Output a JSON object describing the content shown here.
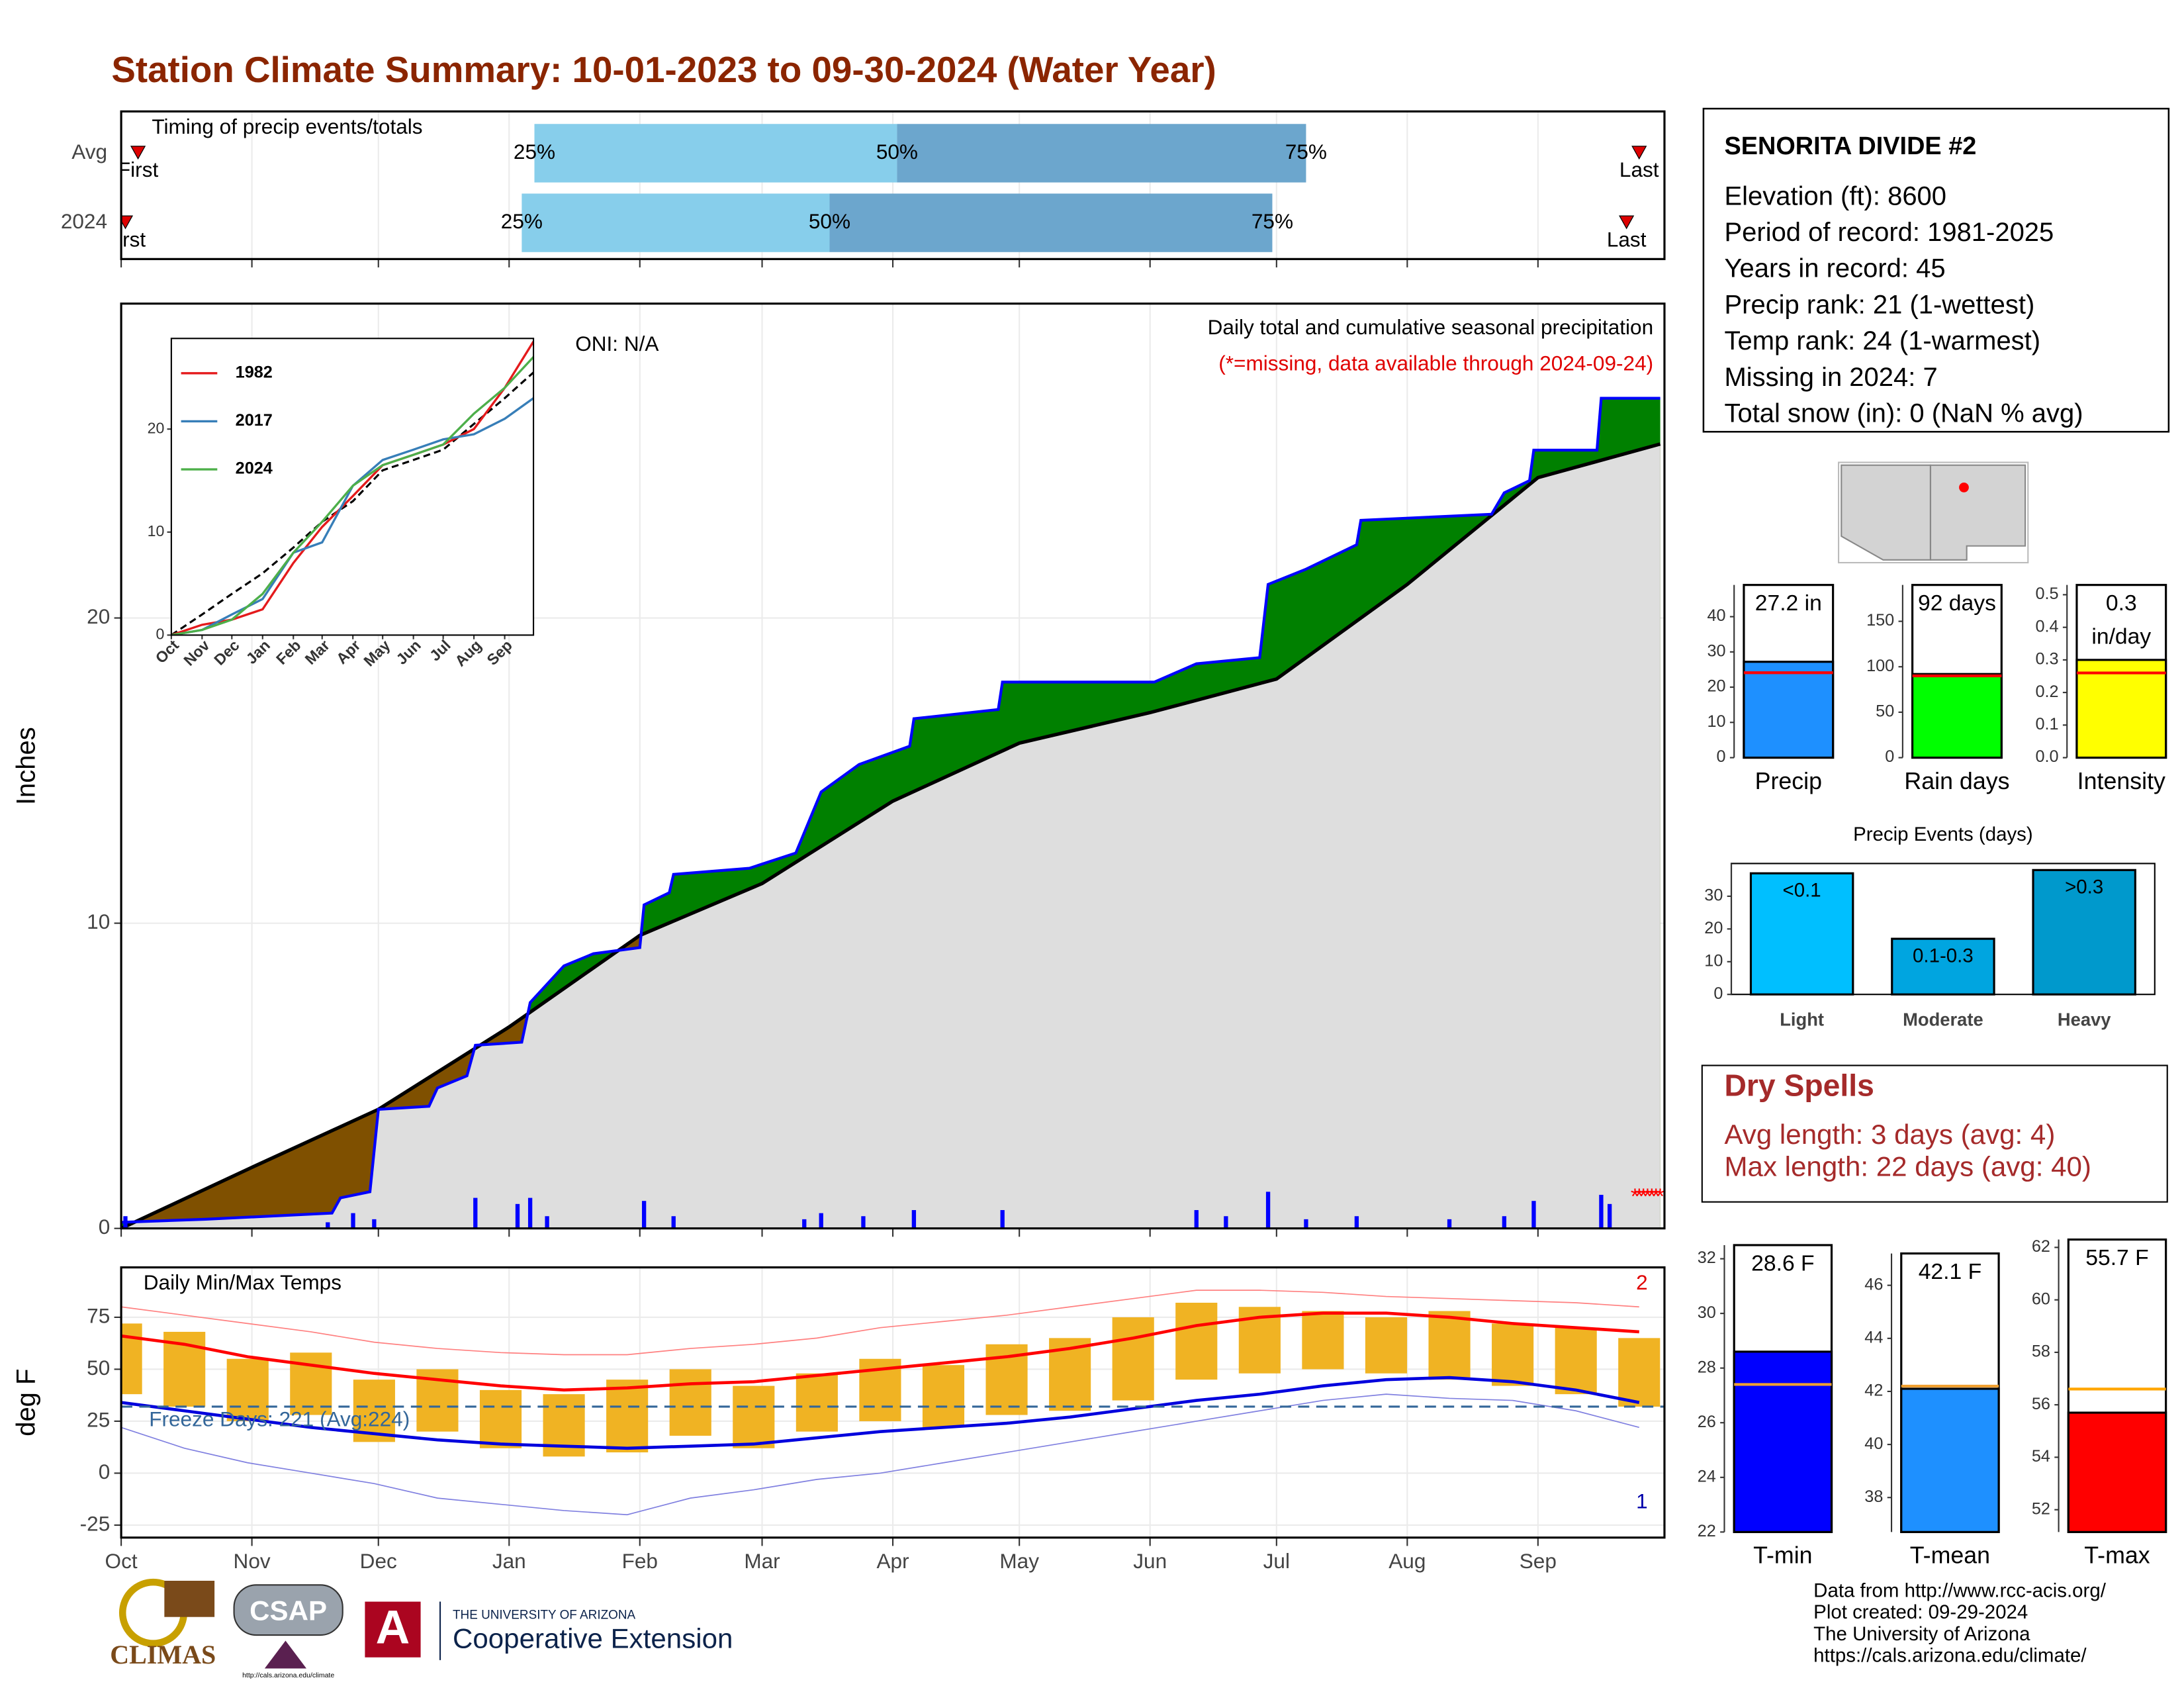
{
  "title": "Station Climate Summary: 10-01-2023 to 09-30-2024 (Water Year)",
  "station": {
    "name": "SENORITA DIVIDE #2",
    "lines": [
      "Elevation (ft): 8600",
      "Period of record: 1981-2025",
      "Years in record: 45",
      "Precip rank: 21 (1-wettest)",
      "Temp rank: 24 (1-warmest)",
      "Missing in 2024: 7",
      "Total snow (in): 0 (NaN % avg)"
    ]
  },
  "dry_spells": {
    "title": "Dry Spells",
    "lines": [
      "Avg length: 3 days (avg: 4)",
      "Max length: 22 days (avg: 40)"
    ]
  },
  "footer": [
    "Data from http://www.rcc-acis.org/",
    "Plot created: 09-29-2024",
    "The University of Arizona",
    "https://cals.arizona.edu/climate/"
  ],
  "logos": [
    "CLIMAS",
    "CSAP",
    "http://cals.arizona.edu/climate",
    "THE UNIVERSITY OF ARIZONA",
    "Cooperative Extension"
  ],
  "chart_data": [
    {
      "type": "timeline",
      "title": "Timing of precip events/totals",
      "xlim": [
        0,
        366
      ],
      "labels": {
        "first": "First",
        "q25": "25%",
        "q50": "50%",
        "q75": "75%",
        "last": "Last"
      },
      "colors": [
        "#87ceeb",
        "#6ca6cd"
      ],
      "marker_color": "#dd0000",
      "rows": [
        {
          "name": "Avg",
          "first": 4,
          "q25": 98,
          "q50": 184,
          "q75": 281,
          "last": 360
        },
        {
          "name": "2024",
          "first": 1,
          "q25": 95,
          "q50": 168,
          "q75": 273,
          "last": 357
        }
      ]
    },
    {
      "type": "area",
      "y_label": "Inches",
      "annotation": "Daily total and cumulative seasonal precipitation",
      "note": "(*=missing, data available through 2024-09-24)",
      "oni": "ONI: N/A",
      "xlim": [
        0,
        366
      ],
      "ylim": [
        0,
        30.3
      ],
      "yticks": [
        0,
        10,
        20
      ],
      "grid": true,
      "colors": {
        "above": "#008000",
        "below": "#7f5000",
        "base": "#dedede",
        "line": "#0000ff",
        "average": "#000000",
        "daily": "#0000ff",
        "missing": "#ff0000"
      },
      "cumulative": {
        "x": [
          0,
          20,
          50,
          52,
          59,
          61,
          73,
          75,
          82,
          84,
          95,
          97,
          105,
          112,
          123,
          124,
          130,
          131,
          149,
          160,
          166,
          175,
          187,
          188,
          208,
          209,
          245,
          255,
          270,
          272,
          281,
          293,
          294,
          325,
          328,
          334,
          335,
          350,
          351,
          365
        ],
        "values": [
          0.2,
          0.3,
          0.5,
          1.0,
          1.2,
          3.9,
          4.0,
          4.6,
          5.0,
          6.0,
          6.1,
          7.4,
          8.6,
          9.0,
          9.2,
          10.6,
          11.0,
          11.6,
          11.8,
          12.3,
          14.3,
          15.2,
          15.8,
          16.7,
          17.0,
          17.9,
          17.9,
          18.5,
          18.7,
          21.1,
          21.6,
          22.4,
          23.2,
          23.4,
          24.1,
          24.5,
          25.5,
          25.5,
          27.2,
          27.2
        ]
      },
      "average": {
        "x": [
          0,
          31,
          61,
          92,
          123,
          152,
          183,
          213,
          244,
          274,
          305,
          336,
          365
        ],
        "values": [
          0,
          2.0,
          3.9,
          6.6,
          9.6,
          11.3,
          14.0,
          15.9,
          16.9,
          18.0,
          21.1,
          24.6,
          25.7
        ]
      },
      "daily": {
        "x": [
          1,
          49,
          55,
          60,
          84,
          94,
          97,
          101,
          124,
          131,
          162,
          166,
          176,
          188,
          209,
          255,
          262,
          272,
          281,
          293,
          315,
          328,
          335,
          351,
          353
        ],
        "values": [
          0.4,
          0.2,
          0.5,
          0.3,
          1.0,
          0.8,
          1.0,
          0.4,
          0.9,
          0.4,
          0.3,
          0.5,
          0.4,
          0.6,
          0.6,
          0.6,
          0.4,
          1.2,
          0.3,
          0.4,
          0.3,
          0.4,
          0.9,
          1.1,
          0.8
        ]
      },
      "missing_marker": "*",
      "missing_days": [
        359,
        360,
        361,
        362,
        363,
        364,
        365
      ]
    },
    {
      "type": "line",
      "xlim": [
        0,
        365
      ],
      "ylim": [
        0,
        28.8
      ],
      "yticks": [
        0,
        10,
        20
      ],
      "x": [
        0,
        31,
        61,
        92,
        123,
        152,
        183,
        213,
        244,
        274,
        305,
        336,
        365
      ],
      "xticks": [
        {
          "value": 0,
          "label": "Oct"
        },
        {
          "value": 31,
          "label": "Nov"
        },
        {
          "value": 61,
          "label": "Dec"
        },
        {
          "value": 92,
          "label": "Jan"
        },
        {
          "value": 123,
          "label": "Feb"
        },
        {
          "value": 152,
          "label": "Mar"
        },
        {
          "value": 183,
          "label": "Apr"
        },
        {
          "value": 213,
          "label": "May"
        },
        {
          "value": 244,
          "label": "Jun"
        },
        {
          "value": 274,
          "label": "Jul"
        },
        {
          "value": 305,
          "label": "Aug"
        },
        {
          "value": 336,
          "label": "Sep"
        }
      ],
      "series": [
        {
          "name": "1982",
          "color": "#e41a1c",
          "values": [
            0,
            1,
            1.5,
            2.5,
            7,
            10.5,
            13.5,
            16.5,
            17.5,
            18.5,
            20,
            24,
            28.5
          ]
        },
        {
          "name": "2017",
          "color": "#377eb8",
          "values": [
            0,
            0.5,
            2,
            3.5,
            8,
            9,
            14.5,
            17,
            18,
            19,
            19.5,
            21,
            23
          ]
        },
        {
          "name": "2024",
          "color": "#4daf4a",
          "values": [
            0,
            0.5,
            1.5,
            4,
            8,
            11,
            14.5,
            16.5,
            17.5,
            18.5,
            21.5,
            24,
            27
          ]
        }
      ],
      "average": {
        "color": "#000000",
        "values": [
          0,
          2,
          4,
          6,
          8.5,
          11,
          13,
          16,
          17,
          18,
          20.5,
          23,
          25.5
        ]
      }
    },
    {
      "type": "range",
      "title": "Daily Min/Max Temps",
      "y_label": "deg F",
      "xlim": [
        0,
        366
      ],
      "ylim": [
        -31,
        99
      ],
      "yticks": [
        -25,
        0,
        25,
        50,
        75
      ],
      "grid": true,
      "xticks": [
        {
          "value": 0,
          "label": "Oct"
        },
        {
          "value": 31,
          "label": "Nov"
        },
        {
          "value": 61,
          "label": "Dec"
        },
        {
          "value": 92,
          "label": "Jan"
        },
        {
          "value": 123,
          "label": "Feb"
        },
        {
          "value": 152,
          "label": "Mar"
        },
        {
          "value": 183,
          "label": "Apr"
        },
        {
          "value": 213,
          "label": "May"
        },
        {
          "value": 244,
          "label": "Jun"
        },
        {
          "value": 274,
          "label": "Jul"
        },
        {
          "value": 305,
          "label": "Aug"
        },
        {
          "value": 336,
          "label": "Sep"
        }
      ],
      "x": [
        0,
        15,
        30,
        45,
        60,
        75,
        90,
        105,
        120,
        135,
        150,
        165,
        180,
        195,
        210,
        225,
        240,
        255,
        270,
        285,
        300,
        315,
        330,
        345,
        360
      ],
      "daily_max": [
        72,
        68,
        55,
        58,
        45,
        50,
        40,
        38,
        45,
        50,
        42,
        48,
        55,
        52,
        62,
        65,
        75,
        82,
        80,
        78,
        75,
        78,
        72,
        70,
        65
      ],
      "daily_min": [
        38,
        32,
        25,
        28,
        15,
        20,
        12,
        8,
        10,
        18,
        12,
        20,
        25,
        22,
        28,
        30,
        35,
        45,
        48,
        50,
        48,
        45,
        42,
        38,
        32
      ],
      "avg_max": [
        66,
        62,
        56,
        52,
        48,
        45,
        42,
        40,
        41,
        43,
        44,
        47,
        50,
        53,
        56,
        60,
        65,
        71,
        75,
        77,
        77,
        75,
        72,
        70,
        68
      ],
      "avg_min": [
        34,
        30,
        26,
        22,
        19,
        16,
        14,
        13,
        12,
        13,
        14,
        17,
        20,
        22,
        24,
        27,
        31,
        35,
        38,
        42,
        45,
        46,
        44,
        40,
        34
      ],
      "record_max": [
        80,
        76,
        72,
        68,
        63,
        60,
        58,
        57,
        57,
        60,
        62,
        65,
        70,
        73,
        76,
        80,
        84,
        88,
        88,
        87,
        85,
        84,
        83,
        82,
        80
      ],
      "record_min": [
        22,
        12,
        5,
        0,
        -5,
        -12,
        -15,
        -18,
        -20,
        -12,
        -8,
        -3,
        0,
        5,
        10,
        15,
        20,
        25,
        30,
        35,
        38,
        36,
        35,
        30,
        22
      ],
      "colors": {
        "daily": "#f0b323",
        "avg_max": "#ff0000",
        "avg_min": "#0000dd",
        "record_max": "#ff8080",
        "record_min": "#8080e0",
        "freeze": "#336699"
      },
      "freeze_line": 32,
      "freeze_label": "Freeze Days: 221 (Avg:224)",
      "record_high_count": 2,
      "record_low_count": 1
    },
    {
      "type": "bar",
      "categories": [
        "Precip"
      ],
      "values": [
        27.2
      ],
      "value_labels": [
        "27.2 in"
      ],
      "average": 24.1,
      "average_color": "#ff0000",
      "color": "#1e90ff",
      "ylim": [
        0,
        49
      ],
      "yticks": [
        0,
        10,
        20,
        30,
        40
      ]
    },
    {
      "type": "bar",
      "categories": [
        "Rain days"
      ],
      "values": [
        92
      ],
      "value_labels": [
        "92 days"
      ],
      "average": 90,
      "average_color": "#ff0000",
      "color": "#00ff00",
      "ylim": [
        0,
        190
      ],
      "yticks": [
        0,
        50,
        100,
        150
      ]
    },
    {
      "type": "bar",
      "categories": [
        "Intensity"
      ],
      "values": [
        0.3
      ],
      "unit": "in/day",
      "average": 0.26,
      "average_color": "#ff0000",
      "color": "#ffff00",
      "ylim": [
        0,
        0.53
      ],
      "yticks": [
        {
          "value": 0,
          "label": "0.0"
        },
        0.1,
        0.2,
        0.3,
        0.4,
        0.5
      ]
    },
    {
      "type": "bar",
      "title": "Precip Events (days)",
      "categories": [
        "Light",
        "Moderate",
        "Heavy"
      ],
      "values": [
        37,
        17,
        38
      ],
      "bar_labels": [
        "<0.1",
        "0.1-0.3",
        ">0.3"
      ],
      "colors": [
        "#00bfff",
        "#00a5e0",
        "#0099cc"
      ],
      "ylim": [
        0,
        40
      ],
      "yticks": [
        0,
        10,
        20,
        30
      ]
    },
    {
      "type": "bar",
      "categories": [
        "T-min"
      ],
      "values": [
        28.6
      ],
      "value_labels": [
        "28.6 F"
      ],
      "average": 27.4,
      "average_color": "#f0a030",
      "color": "#0000ff",
      "ylim": [
        22,
        32.5
      ],
      "yticks": [
        22,
        24,
        26,
        28,
        30,
        32
      ]
    },
    {
      "type": "bar",
      "categories": [
        "T-mean"
      ],
      "values": [
        42.1
      ],
      "value_labels": [
        "42.1 F"
      ],
      "average": 42.2,
      "average_color": "#f0a030",
      "color": "#1e90ff",
      "ylim": [
        36.7,
        47.2
      ],
      "yticks": [
        38,
        40,
        42,
        44,
        46
      ]
    },
    {
      "type": "bar",
      "categories": [
        "T-max"
      ],
      "values": [
        55.7
      ],
      "value_labels": [
        "55.7 F"
      ],
      "average": 56.6,
      "average_color": "#ffa500",
      "color": "#ff0000",
      "ylim": [
        51.15,
        62.3
      ],
      "yticks": [
        52,
        54,
        56,
        58,
        60,
        62
      ]
    }
  ]
}
